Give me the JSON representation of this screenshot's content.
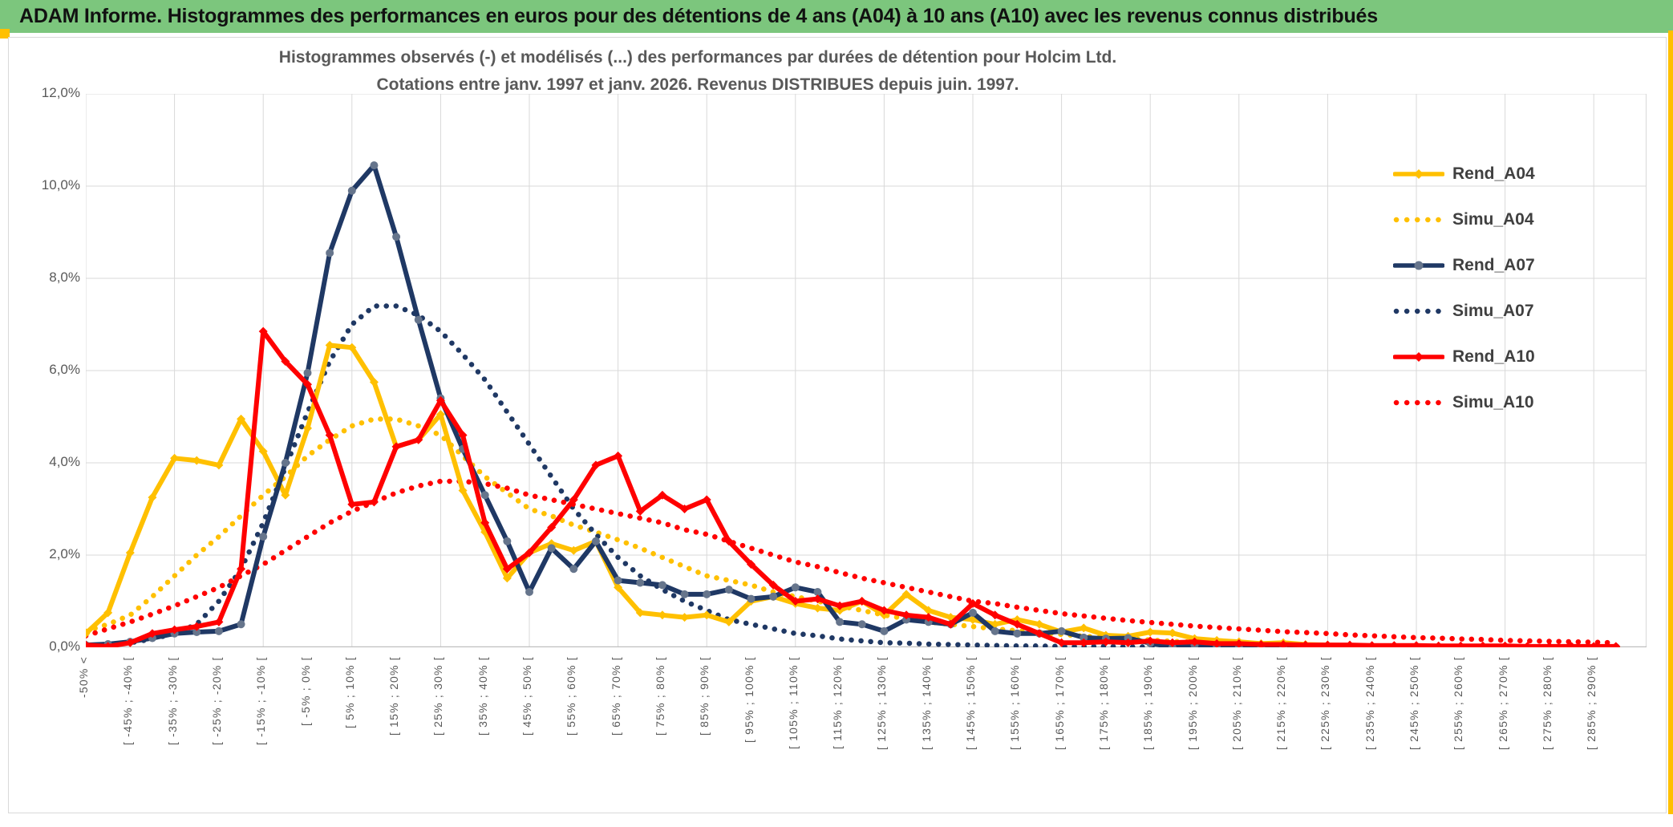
{
  "banner": {
    "title": "ADAM Informe. Histogrammes des performances en euros pour des détentions de 4 ans (A04) à 10 ans (A10) avec les revenus connus distribués",
    "bg_color": "#7CC67D",
    "accent_color": "#FFC000"
  },
  "chart_data": {
    "type": "line",
    "title": "Histogrammes observés (-) et modélisés (...) des performances par durées de détention pour Holcim Ltd.",
    "subtitle": "Cotations entre janv. 1997 et janv. 2026. Revenus DISTRIBUES depuis juin. 1997.",
    "ylabel": "",
    "xlabel": "",
    "ylim": [
      0,
      12
    ],
    "y_tick_labels": [
      "12,0%",
      "10,0%",
      "8,0%",
      "6,0%",
      "4,0%",
      "2,0%",
      "0,0%"
    ],
    "grid": true,
    "bins_total": 70,
    "x_label_every_n_bins": 2,
    "x_gridline_every_n_bins": 4,
    "x_tick_labels": [
      "-50% <",
      "[ -45% ; -40% [",
      "[ -35% ; -30% [",
      "[ -25% ; -20% [",
      "[ -15% ; -10% [",
      "[ -5% ; 0% [",
      "[ 5% ; 10% [",
      "[ 15% ; 20% [",
      "[ 25% ; 30% [",
      "[ 35% ; 40% [",
      "[ 45% ; 50% [",
      "[ 55% ; 60% [",
      "[ 65% ; 70% [",
      "[ 75% ; 80% [",
      "[ 85% ; 90% [",
      "[ 95% ; 100% [",
      "[ 105% ; 110% [",
      "[ 115% ; 120% [",
      "[ 125% ; 130% [",
      "[ 135% ; 140% [",
      "[ 145% ; 150% [",
      "[ 155% ; 160% [",
      "[ 165% ; 170% [",
      "[ 175% ; 180% [",
      "[ 185% ; 190% [",
      "[ 195% ; 200% [",
      "[ 205% ; 210% [",
      "[ 215% ; 220% [",
      "[ 225% ; 230% [",
      "[ 235% ; 240% [",
      "[ 245% ; 250% [",
      "[ 255% ; 260% [",
      "[ 265% ; 270% [",
      "[ 275% ; 280% [",
      "[ 285% ; 290% ["
    ],
    "legend_position": "right-inside",
    "series": [
      {
        "name": "Rend_A04",
        "style": "solid",
        "marker": "diamond",
        "color": "#FFC000",
        "marker_color": "#FFC000",
        "values": [
          0.3,
          0.75,
          2.05,
          3.25,
          4.1,
          4.05,
          3.95,
          4.95,
          4.25,
          3.3,
          4.75,
          6.55,
          6.5,
          5.75,
          4.35,
          4.5,
          5.05,
          3.4,
          2.5,
          1.5,
          2.05,
          2.25,
          2.1,
          2.3,
          1.3,
          0.75,
          0.7,
          0.65,
          0.7,
          0.55,
          1.0,
          1.1,
          0.95,
          0.85,
          0.8,
          1.0,
          0.7,
          1.15,
          0.8,
          0.65,
          0.6,
          0.5,
          0.6,
          0.5,
          0.33,
          0.42,
          0.26,
          0.24,
          0.33,
          0.31,
          0.19,
          0.15,
          0.12,
          0.08,
          0.1,
          0.06,
          0.05,
          0.04,
          0.03,
          0.03,
          0.02,
          0.02,
          0.01,
          0.01,
          0.01,
          0.01,
          0,
          0,
          0,
          0
        ]
      },
      {
        "name": "Simu_A04",
        "style": "dotted",
        "marker": "none",
        "color": "#FFC000",
        "marker_color": "#FFC000",
        "values": [
          0.35,
          0.5,
          0.7,
          1.1,
          1.55,
          2.0,
          2.4,
          2.85,
          3.3,
          3.7,
          4.15,
          4.5,
          4.8,
          4.95,
          4.95,
          4.8,
          4.6,
          4.15,
          3.7,
          3.35,
          3.0,
          2.85,
          2.65,
          2.5,
          2.33,
          2.15,
          1.95,
          1.75,
          1.55,
          1.45,
          1.35,
          1.2,
          1.1,
          1.0,
          0.9,
          0.8,
          0.7,
          0.62,
          0.55,
          0.5,
          0.45,
          0.4,
          0.36,
          0.32,
          0.28,
          0.24,
          0.21,
          0.18,
          0.16,
          0.13,
          0.11,
          0.1,
          0.08,
          0.07,
          0.06,
          0.05,
          0.04,
          0.04,
          0.03,
          0.03,
          0.02,
          0.02,
          0.02,
          0.01,
          0.01,
          0.01,
          0.01,
          0.01,
          0,
          0
        ]
      },
      {
        "name": "Rend_A07",
        "style": "solid",
        "marker": "circle",
        "color": "#1F3864",
        "marker_color": "#66758C",
        "values": [
          0.05,
          0.07,
          0.12,
          0.2,
          0.3,
          0.33,
          0.35,
          0.5,
          2.4,
          4.0,
          5.95,
          8.55,
          9.9,
          10.45,
          8.9,
          7.1,
          5.4,
          4.3,
          3.3,
          2.3,
          1.2,
          2.15,
          1.7,
          2.3,
          1.45,
          1.4,
          1.35,
          1.15,
          1.15,
          1.25,
          1.05,
          1.1,
          1.3,
          1.2,
          0.55,
          0.5,
          0.35,
          0.6,
          0.55,
          0.5,
          0.75,
          0.35,
          0.3,
          0.3,
          0.35,
          0.21,
          0.19,
          0.2,
          0.09,
          0,
          0.05,
          0.03,
          0.02,
          0,
          0,
          0,
          0,
          0,
          0,
          0,
          0,
          0,
          0,
          0,
          0,
          0,
          0,
          0,
          0,
          0
        ]
      },
      {
        "name": "Simu_A07",
        "style": "dotted",
        "marker": "none",
        "color": "#1F3864",
        "marker_color": "#1F3864",
        "values": [
          0.02,
          0.05,
          0.1,
          0.18,
          0.3,
          0.5,
          1.0,
          1.7,
          2.7,
          3.9,
          5.1,
          6.2,
          7.0,
          7.4,
          7.4,
          7.2,
          6.85,
          6.35,
          5.8,
          5.1,
          4.4,
          3.7,
          3.0,
          2.45,
          1.95,
          1.55,
          1.25,
          1.0,
          0.8,
          0.6,
          0.5,
          0.4,
          0.3,
          0.25,
          0.18,
          0.14,
          0.1,
          0.09,
          0.07,
          0.06,
          0.05,
          0.04,
          0.03,
          0.03,
          0.02,
          0.02,
          0.02,
          0.01,
          0.01,
          0.01,
          0.01,
          0,
          0,
          0,
          0,
          0,
          0,
          0,
          0,
          0,
          0,
          0,
          0,
          0,
          0,
          0,
          0,
          0,
          0,
          0
        ]
      },
      {
        "name": "Rend_A10",
        "style": "solid",
        "marker": "diamond",
        "color": "#FF0000",
        "marker_color": "#FF0000",
        "values": [
          0.05,
          0.02,
          0.1,
          0.3,
          0.38,
          0.45,
          0.55,
          1.7,
          6.85,
          6.2,
          5.7,
          4.6,
          3.1,
          3.15,
          4.35,
          4.5,
          5.35,
          4.6,
          2.7,
          1.7,
          2.05,
          2.6,
          3.2,
          3.95,
          4.15,
          2.95,
          3.3,
          3.0,
          3.2,
          2.3,
          1.8,
          1.35,
          1.0,
          1.05,
          0.9,
          1.0,
          0.8,
          0.7,
          0.65,
          0.5,
          0.95,
          0.7,
          0.5,
          0.3,
          0.1,
          0.1,
          0.12,
          0.1,
          0.14,
          0.1,
          0.12,
          0.08,
          0.08,
          0.06,
          0.06,
          0.05,
          0.05,
          0.05,
          0.04,
          0.04,
          0.04,
          0.03,
          0.03,
          0.03,
          0.03,
          0.02,
          0.02,
          0.02,
          0.02,
          0.02
        ]
      },
      {
        "name": "Simu_A10",
        "style": "dotted",
        "marker": "none",
        "color": "#FF0000",
        "marker_color": "#FF0000",
        "values": [
          0.25,
          0.4,
          0.55,
          0.72,
          0.9,
          1.1,
          1.3,
          1.55,
          1.8,
          2.1,
          2.4,
          2.7,
          2.95,
          3.15,
          3.35,
          3.5,
          3.6,
          3.6,
          3.55,
          3.45,
          3.3,
          3.2,
          3.1,
          3.0,
          2.9,
          2.8,
          2.7,
          2.55,
          2.45,
          2.3,
          2.15,
          2.0,
          1.85,
          1.75,
          1.62,
          1.5,
          1.4,
          1.3,
          1.2,
          1.1,
          1.0,
          0.95,
          0.87,
          0.8,
          0.73,
          0.68,
          0.63,
          0.58,
          0.54,
          0.5,
          0.46,
          0.43,
          0.4,
          0.37,
          0.34,
          0.32,
          0.3,
          0.27,
          0.25,
          0.23,
          0.21,
          0.2,
          0.18,
          0.17,
          0.15,
          0.14,
          0.13,
          0.12,
          0.11,
          0.1
        ]
      }
    ],
    "colors": {
      "gridline": "#D9D9D9",
      "axis_line": "#BFBFBF",
      "axis_text": "#595959",
      "title_text": "#595959",
      "legend_text": "#404040"
    }
  }
}
